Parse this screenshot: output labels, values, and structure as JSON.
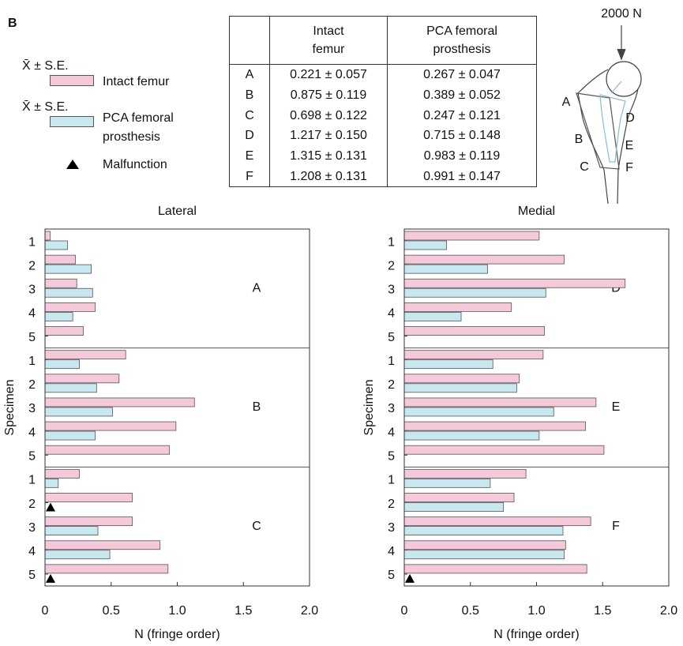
{
  "panel_label": "B",
  "legend": {
    "stat_labels": [
      "X̄ ± S.E.",
      "X̄ ± S.E."
    ],
    "malfunction": "Malfunction"
  },
  "table": {
    "columns": [
      "Intact femur",
      "PCA femoral prosthesis"
    ],
    "rows": [
      [
        "A",
        "0.221 ± 0.057",
        "0.267 ± 0.047"
      ],
      [
        "B",
        "0.875 ± 0.119",
        "0.389 ± 0.052"
      ],
      [
        "C",
        "0.698 ± 0.122",
        "0.247 ± 0.121"
      ],
      [
        "D",
        "1.217 ± 0.150",
        "0.715 ± 0.148"
      ],
      [
        "E",
        "1.315 ± 0.131",
        "0.983 ± 0.119"
      ],
      [
        "F",
        "1.208 ± 0.131",
        "0.991 ± 0.147"
      ]
    ]
  },
  "diagram": {
    "load": "2000 N",
    "labels": [
      "A",
      "B",
      "C",
      "D",
      "E",
      "F"
    ]
  },
  "chart_data": [
    {
      "type": "bar",
      "orientation": "horizontal",
      "title": "Lateral",
      "xlabel": "N (fringe order)",
      "ylabel": "Specimen",
      "groups": [
        "A",
        "B",
        "C"
      ],
      "categories": [
        "1",
        "2",
        "3",
        "4",
        "5"
      ],
      "series": [
        {
          "name": "Intact femur",
          "color": "#f5c8da",
          "values": [
            [
              0.04,
              0.23,
              0.24,
              0.38,
              0.29
            ],
            [
              0.61,
              0.56,
              1.13,
              0.99,
              0.94
            ],
            [
              0.26,
              0.66,
              0.66,
              0.87,
              0.93
            ]
          ]
        },
        {
          "name": "PCA femoral prosthesis",
          "color": "#c8e8f0",
          "values": [
            [
              0.17,
              0.35,
              0.36,
              0.21,
              null
            ],
            [
              0.26,
              0.39,
              0.51,
              0.38,
              null
            ],
            [
              0.1,
              null,
              0.4,
              0.49,
              null
            ]
          ]
        }
      ],
      "malfunction": [
        [],
        [],
        [
          "2",
          "5"
        ]
      ],
      "xlim": [
        0,
        2
      ],
      "xticks": [
        0,
        0.5,
        {
          "value": 1,
          "label": "1.0"
        },
        1.5,
        {
          "value": 2,
          "label": "2.0"
        }
      ]
    },
    {
      "type": "bar",
      "orientation": "horizontal",
      "title": "Medial",
      "xlabel": "N (fringe order)",
      "ylabel": "Specimen",
      "groups": [
        "D",
        "E",
        "F"
      ],
      "categories": [
        "1",
        "2",
        "3",
        "4",
        "5"
      ],
      "series": [
        {
          "name": "Intact femur",
          "color": "#f5c8da",
          "values": [
            [
              1.02,
              1.21,
              1.67,
              0.81,
              1.06
            ],
            [
              1.05,
              0.87,
              1.45,
              1.37,
              1.51
            ],
            [
              0.92,
              0.83,
              1.41,
              1.22,
              1.38
            ]
          ]
        },
        {
          "name": "PCA femoral prosthesis",
          "color": "#c8e8f0",
          "values": [
            [
              0.32,
              0.63,
              1.07,
              0.43,
              null
            ],
            [
              0.67,
              0.85,
              1.13,
              1.02,
              null
            ],
            [
              0.65,
              0.75,
              1.2,
              1.21,
              null
            ]
          ]
        }
      ],
      "malfunction": [
        [],
        [],
        [
          "5"
        ]
      ],
      "xlim": [
        0,
        2
      ],
      "xticks": [
        0,
        0.5,
        {
          "value": 1,
          "label": "1.0"
        },
        1.5,
        {
          "value": 2,
          "label": "2.0"
        }
      ]
    }
  ]
}
